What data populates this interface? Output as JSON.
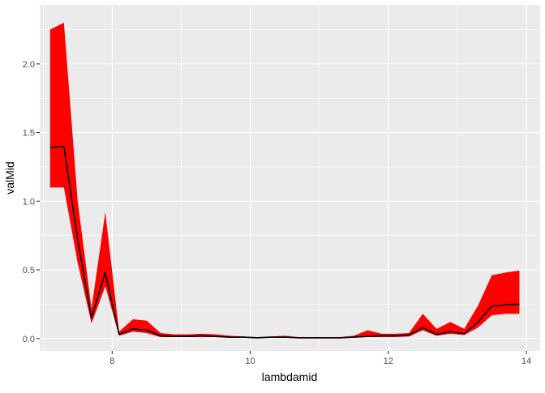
{
  "chart_data": {
    "type": "area",
    "title": "",
    "xlabel": "lambdamid",
    "ylabel": "valMid",
    "xlim": [
      6.95,
      14.2
    ],
    "ylim": [
      -0.09,
      2.43
    ],
    "x_ticks": [
      8,
      10,
      12,
      14
    ],
    "x_tick_labels": [
      "8",
      "10",
      "12",
      "14"
    ],
    "y_ticks": [
      0.0,
      0.5,
      1.0,
      1.5,
      2.0
    ],
    "y_tick_labels": [
      "0.0",
      "0.5",
      "1.0",
      "1.5",
      "2.0"
    ],
    "grid": true,
    "legend": "none",
    "colors": {
      "panel_bg": "#ebebeb",
      "grid_major": "#ffffff",
      "ribbon_fill": "#ff0000",
      "line": "#000000",
      "tick_mark": "#333333"
    },
    "series": [
      {
        "type": "line",
        "x": [
          7.1,
          7.3,
          7.5,
          7.7,
          7.9,
          8.1,
          8.3,
          8.5,
          8.7,
          8.9,
          9.1,
          9.3,
          9.5,
          9.7,
          9.9,
          10.1,
          10.3,
          10.5,
          10.7,
          10.9,
          11.1,
          11.3,
          11.5,
          11.7,
          11.9,
          12.1,
          12.3,
          12.5,
          12.7,
          12.9,
          13.1,
          13.3,
          13.5,
          13.7,
          13.9
        ],
        "values": [
          1.39,
          1.4,
          0.72,
          0.15,
          0.48,
          0.03,
          0.07,
          0.06,
          0.02,
          0.015,
          0.015,
          0.02,
          0.015,
          0.01,
          0.01,
          0.005,
          0.01,
          0.01,
          0.005,
          0.005,
          0.005,
          0.005,
          0.01,
          0.015,
          0.02,
          0.02,
          0.025,
          0.08,
          0.03,
          0.05,
          0.035,
          0.12,
          0.235,
          0.245,
          0.25
        ]
      },
      {
        "type": "ribbon",
        "x": [
          7.1,
          7.3,
          7.5,
          7.7,
          7.9,
          8.1,
          8.3,
          8.5,
          8.7,
          8.9,
          9.1,
          9.3,
          9.5,
          9.7,
          9.9,
          10.1,
          10.3,
          10.5,
          10.7,
          10.9,
          11.1,
          11.3,
          11.5,
          11.7,
          11.9,
          12.1,
          12.3,
          12.5,
          12.7,
          12.9,
          13.1,
          13.3,
          13.5,
          13.7,
          13.9
        ],
        "upper": [
          2.25,
          2.3,
          1.0,
          0.22,
          0.92,
          0.05,
          0.14,
          0.13,
          0.04,
          0.03,
          0.03,
          0.035,
          0.03,
          0.02,
          0.015,
          0.01,
          0.015,
          0.02,
          0.01,
          0.01,
          0.01,
          0.01,
          0.02,
          0.06,
          0.035,
          0.035,
          0.04,
          0.18,
          0.07,
          0.12,
          0.07,
          0.24,
          0.46,
          0.48,
          0.495
        ],
        "lower": [
          1.1,
          1.1,
          0.55,
          0.11,
          0.38,
          0.02,
          0.05,
          0.04,
          0.01,
          0.01,
          0.01,
          0.01,
          0.01,
          0.005,
          0.005,
          0.002,
          0.005,
          0.005,
          0.002,
          0.002,
          0.002,
          0.002,
          0.005,
          0.01,
          0.01,
          0.01,
          0.015,
          0.06,
          0.02,
          0.035,
          0.025,
          0.08,
          0.17,
          0.18,
          0.18
        ]
      }
    ]
  }
}
